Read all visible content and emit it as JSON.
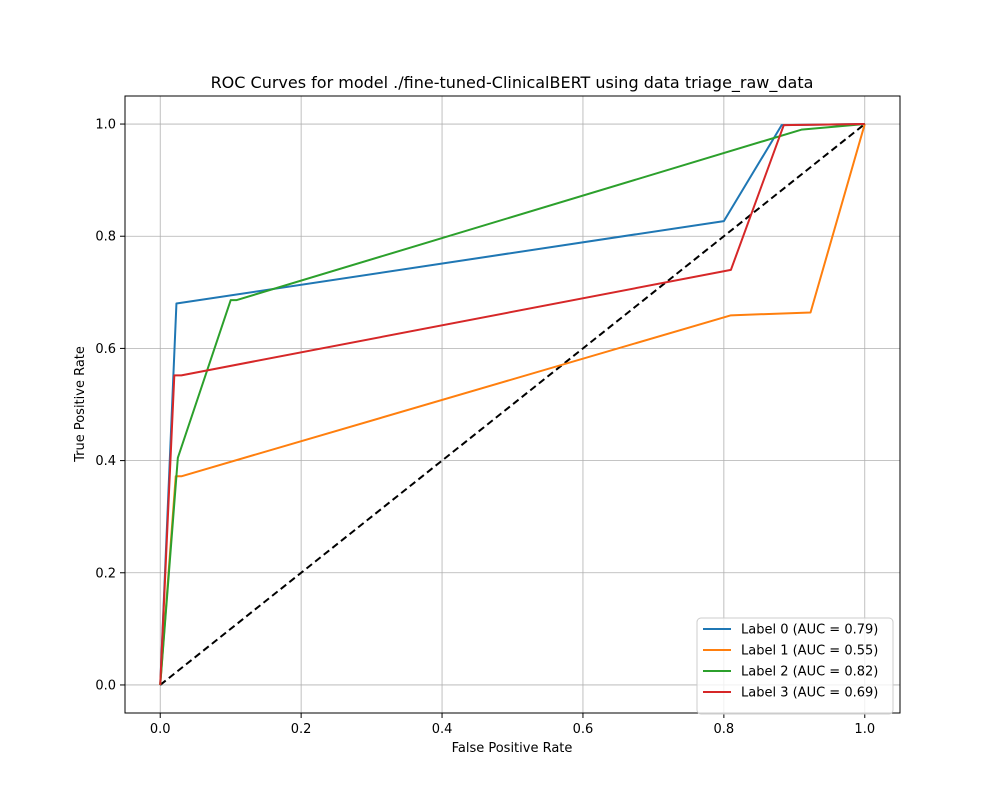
{
  "chart_data": {
    "type": "line",
    "title": "ROC Curves for model ./fine-tuned-ClinicalBERT using data triage_raw_data",
    "xlabel": "False Positive Rate",
    "ylabel": "True Positive Rate",
    "xlim": [
      -0.05,
      1.05
    ],
    "ylim": [
      -0.05,
      1.05
    ],
    "xticks": [
      0.0,
      0.2,
      0.4,
      0.6,
      0.8,
      1.0
    ],
    "yticks": [
      0.0,
      0.2,
      0.4,
      0.6,
      0.8,
      1.0
    ],
    "xtick_labels": [
      "0.0",
      "0.2",
      "0.4",
      "0.6",
      "0.8",
      "1.0"
    ],
    "ytick_labels": [
      "0.0",
      "0.2",
      "0.4",
      "0.6",
      "0.8",
      "1.0"
    ],
    "grid": true,
    "legend_position": "lower-right",
    "series": [
      {
        "name": "Label 0 (AUC = 0.79)",
        "color": "#1f77b4",
        "points": [
          [
            0.0,
            0.0
          ],
          [
            0.023,
            0.68
          ],
          [
            0.8,
            0.827
          ],
          [
            0.882,
            0.998
          ],
          [
            1.0,
            1.0
          ]
        ]
      },
      {
        "name": "Label 1 (AUC = 0.55)",
        "color": "#ff7f0e",
        "points": [
          [
            0.0,
            0.0
          ],
          [
            0.022,
            0.372
          ],
          [
            0.03,
            0.372
          ],
          [
            0.81,
            0.659
          ],
          [
            0.923,
            0.664
          ],
          [
            1.0,
            1.0
          ]
        ]
      },
      {
        "name": "Label 2 (AUC = 0.82)",
        "color": "#2ca02c",
        "points": [
          [
            0.0,
            0.0
          ],
          [
            0.025,
            0.405
          ],
          [
            0.1,
            0.686
          ],
          [
            0.108,
            0.686
          ],
          [
            0.91,
            0.99
          ],
          [
            1.0,
            1.0
          ]
        ]
      },
      {
        "name": "Label 3 (AUC = 0.69)",
        "color": "#d62728",
        "points": [
          [
            0.0,
            0.0
          ],
          [
            0.02,
            0.552
          ],
          [
            0.03,
            0.552
          ],
          [
            0.81,
            0.74
          ],
          [
            0.885,
            0.998
          ],
          [
            1.0,
            1.0
          ]
        ]
      }
    ],
    "reference_line": {
      "color": "#000000",
      "dashed": true,
      "points": [
        [
          0.0,
          0.0
        ],
        [
          1.0,
          1.0
        ]
      ]
    }
  }
}
